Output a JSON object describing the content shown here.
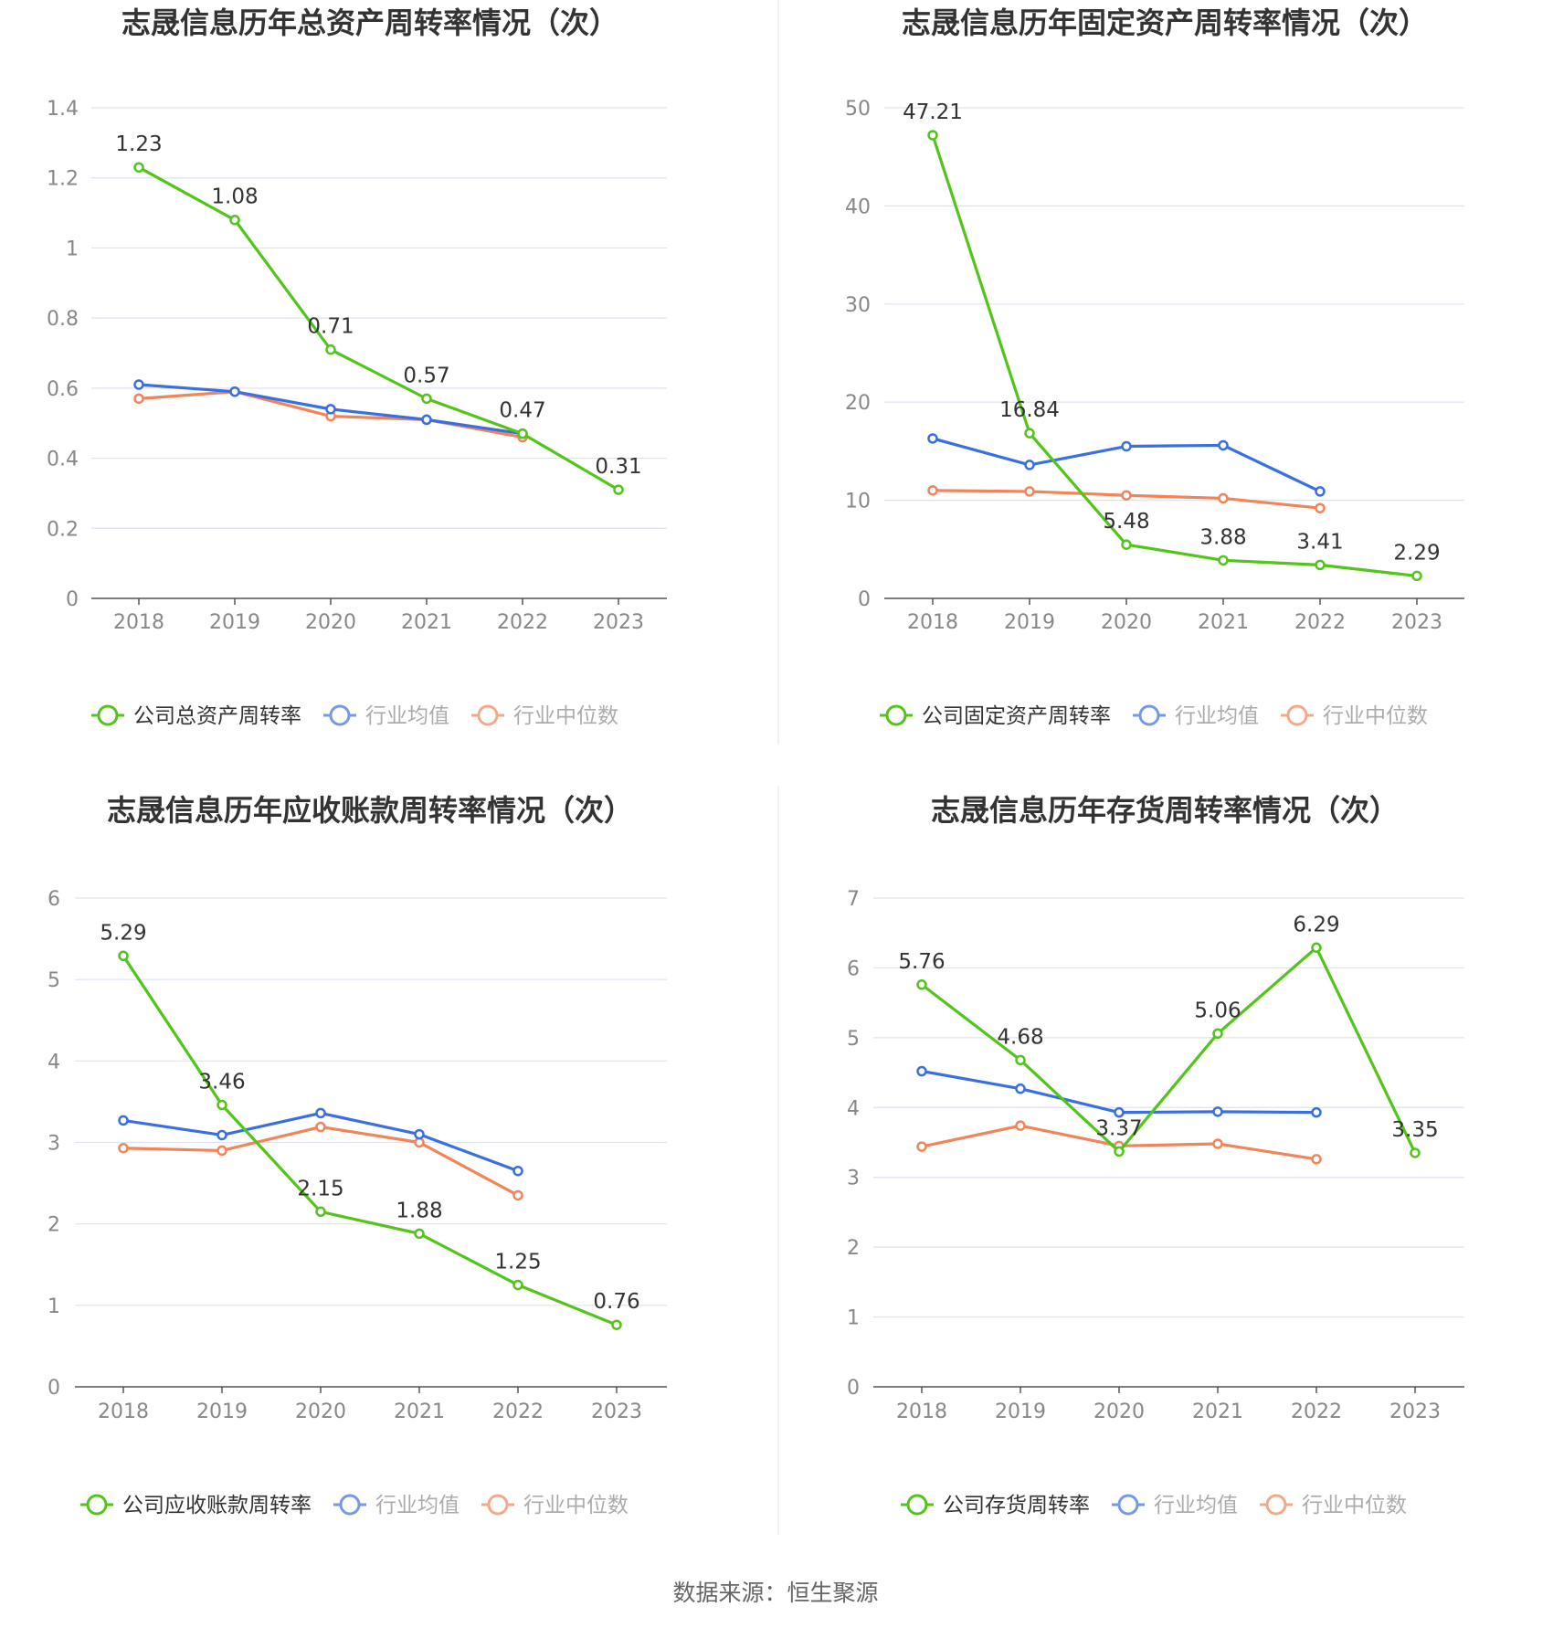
{
  "source": "数据来源：恒生聚源",
  "colors": {
    "company": "#52c41a",
    "average": "#3a6fe0",
    "median": "#f0845a",
    "grid": "#dfe3ee",
    "axis": "#555555",
    "tick_text": "#888888",
    "title": "#333333",
    "divider": "#eeeeee"
  },
  "chart_data": [
    {
      "type": "line",
      "title": "志晟信息历年总资产周转率情况（次）",
      "categories": [
        "2018",
        "2019",
        "2020",
        "2021",
        "2022",
        "2023"
      ],
      "ylim": [
        0,
        1.4
      ],
      "yticks": [
        0,
        0.2,
        0.4,
        0.6,
        0.8,
        1,
        1.2,
        1.4
      ],
      "ytick_labels": [
        "0",
        "0.2",
        "0.4",
        "0.6",
        "0.8",
        "1",
        "1.2",
        "1.4"
      ],
      "grid": true,
      "legend_position": "bottom",
      "series": [
        {
          "name": "公司总资产周转率",
          "role": "company",
          "values": [
            1.23,
            1.08,
            0.71,
            0.57,
            0.47,
            0.31
          ],
          "labels": [
            "1.23",
            "1.08",
            "0.71",
            "0.57",
            "0.47",
            "0.31"
          ]
        },
        {
          "name": "行业均值",
          "role": "average",
          "values": [
            0.61,
            0.59,
            0.54,
            0.51,
            0.47,
            null
          ]
        },
        {
          "name": "行业中位数",
          "role": "median",
          "values": [
            0.57,
            0.59,
            0.52,
            0.51,
            0.46,
            null
          ]
        }
      ]
    },
    {
      "type": "line",
      "title": "志晟信息历年固定资产周转率情况（次）",
      "categories": [
        "2018",
        "2019",
        "2020",
        "2021",
        "2022",
        "2023"
      ],
      "ylim": [
        0,
        50
      ],
      "yticks": [
        0,
        10,
        20,
        30,
        40,
        50
      ],
      "ytick_labels": [
        "0",
        "10",
        "20",
        "30",
        "40",
        "50"
      ],
      "grid": true,
      "legend_position": "bottom",
      "series": [
        {
          "name": "公司固定资产周转率",
          "role": "company",
          "values": [
            47.21,
            16.84,
            5.48,
            3.88,
            3.41,
            2.29
          ],
          "labels": [
            "47.21",
            "16.84",
            "5.48",
            "3.88",
            "3.41",
            "2.29"
          ]
        },
        {
          "name": "行业均值",
          "role": "average",
          "values": [
            16.3,
            13.6,
            15.5,
            15.6,
            10.9,
            null
          ]
        },
        {
          "name": "行业中位数",
          "role": "median",
          "values": [
            11.0,
            10.9,
            10.5,
            10.2,
            9.2,
            null
          ]
        }
      ]
    },
    {
      "type": "line",
      "title": "志晟信息历年应收账款周转率情况（次）",
      "categories": [
        "2018",
        "2019",
        "2020",
        "2021",
        "2022",
        "2023"
      ],
      "ylim": [
        0,
        6
      ],
      "yticks": [
        0,
        1,
        2,
        3,
        4,
        5,
        6
      ],
      "ytick_labels": [
        "0",
        "1",
        "2",
        "3",
        "4",
        "5",
        "6"
      ],
      "grid": true,
      "legend_position": "bottom",
      "series": [
        {
          "name": "公司应收账款周转率",
          "role": "company",
          "values": [
            5.29,
            3.46,
            2.15,
            1.88,
            1.25,
            0.76
          ],
          "labels": [
            "5.29",
            "3.46",
            "2.15",
            "1.88",
            "1.25",
            "0.76"
          ]
        },
        {
          "name": "行业均值",
          "role": "average",
          "values": [
            3.27,
            3.09,
            3.36,
            3.1,
            2.65,
            null
          ]
        },
        {
          "name": "行业中位数",
          "role": "median",
          "values": [
            2.93,
            2.9,
            3.19,
            3.0,
            2.35,
            null
          ]
        }
      ]
    },
    {
      "type": "line",
      "title": "志晟信息历年存货周转率情况（次）",
      "categories": [
        "2018",
        "2019",
        "2020",
        "2021",
        "2022",
        "2023"
      ],
      "ylim": [
        0,
        7
      ],
      "yticks": [
        0,
        1,
        2,
        3,
        4,
        5,
        6,
        7
      ],
      "ytick_labels": [
        "0",
        "1",
        "2",
        "3",
        "4",
        "5",
        "6",
        "7"
      ],
      "grid": true,
      "legend_position": "bottom",
      "series": [
        {
          "name": "公司存货周转率",
          "role": "company",
          "values": [
            5.76,
            4.68,
            3.37,
            5.06,
            6.29,
            3.35
          ],
          "labels": [
            "5.76",
            "4.68",
            "3.37",
            "5.06",
            "6.29",
            "3.35"
          ]
        },
        {
          "name": "行业均值",
          "role": "average",
          "values": [
            4.52,
            4.27,
            3.93,
            3.94,
            3.93,
            null
          ]
        },
        {
          "name": "行业中位数",
          "role": "median",
          "values": [
            3.44,
            3.74,
            3.45,
            3.48,
            3.26,
            null
          ]
        }
      ]
    }
  ]
}
